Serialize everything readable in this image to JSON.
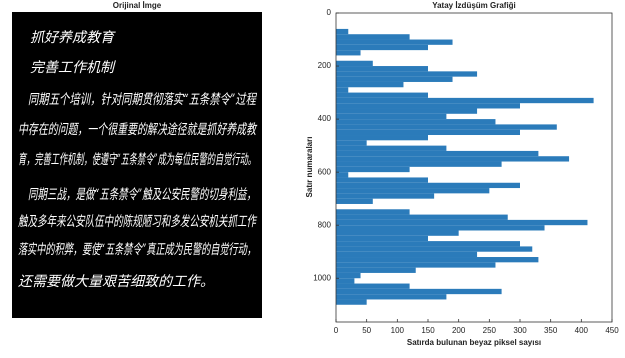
{
  "image": {
    "title": "Orijinal İmge",
    "lines": [
      "抓好养成教育",
      "完善工作机制",
      "同期五个培训，针对同期贯彻落实“五条禁令”过程",
      "中存在的问题，一个很重要的解决途径就是抓好养成教",
      "育，完善工作机制，使遵守“五条禁令”成为每位民警的自觉行动。",
      "同期三战，是做“五条禁令”触及公安民警的切身利益，",
      "触及多年来公安队伍中的陈规陋习和多发公安机关抓工作",
      "落实中的积弊，要使“五条禁令”真正成为民警的自觉行动，",
      "还需要做大量艰苦细致的工作。"
    ]
  },
  "chart_data": {
    "type": "barh",
    "title": "Yatay İzdüşüm Grafiği",
    "x_label": "Satırda bulunan beyaz piksel sayısı",
    "y_label": "Satır numaraları",
    "color": "#2b7bba",
    "bin_height": 20,
    "y": [
      0,
      20,
      40,
      60,
      80,
      100,
      120,
      140,
      160,
      180,
      200,
      220,
      240,
      260,
      280,
      300,
      320,
      340,
      360,
      380,
      400,
      420,
      440,
      460,
      480,
      500,
      520,
      540,
      560,
      580,
      600,
      620,
      640,
      660,
      680,
      700,
      720,
      740,
      760,
      780,
      800,
      820,
      840,
      860,
      880,
      900,
      920,
      940,
      960,
      980,
      1000,
      1020,
      1040,
      1060,
      1080,
      1100
    ],
    "values": [
      0,
      0,
      0,
      20,
      120,
      190,
      150,
      40,
      0,
      60,
      150,
      230,
      190,
      110,
      20,
      150,
      420,
      300,
      230,
      180,
      260,
      360,
      300,
      150,
      50,
      180,
      330,
      380,
      270,
      120,
      20,
      150,
      300,
      250,
      160,
      60,
      0,
      120,
      280,
      410,
      340,
      200,
      150,
      300,
      320,
      230,
      330,
      260,
      130,
      40,
      30,
      120,
      270,
      180,
      50,
      0
    ],
    "xlim": [
      0,
      450
    ],
    "ylim": [
      0,
      1165
    ],
    "y_inverted": true,
    "xticks": [
      0,
      50,
      100,
      150,
      200,
      250,
      300,
      350,
      400,
      450
    ],
    "yticks": [
      0,
      200,
      400,
      600,
      800,
      1000
    ]
  }
}
